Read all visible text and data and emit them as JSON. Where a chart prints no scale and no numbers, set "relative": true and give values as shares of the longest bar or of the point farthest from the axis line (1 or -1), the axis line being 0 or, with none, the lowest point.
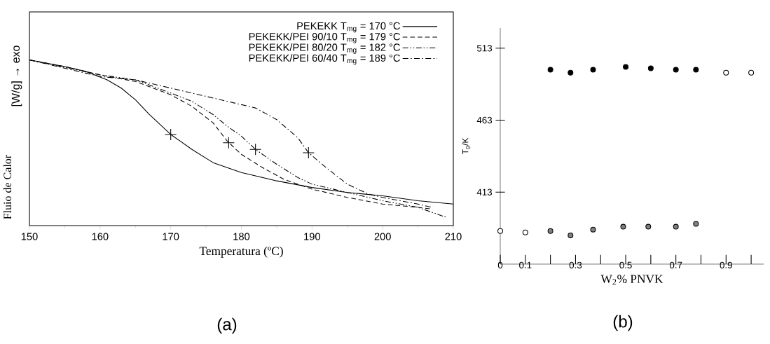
{
  "chart_data": [
    {
      "type": "line",
      "relative": true,
      "xlabel": "Temperatura (ºC)",
      "ylabel": "Fluio de Calor",
      "annotations": [
        "[W/g] → exo",
        "(a)"
      ],
      "xlim": [
        150,
        210
      ],
      "xticks": [
        150,
        160,
        170,
        180,
        190,
        200,
        210
      ],
      "tick_labels": "x",
      "legend": "top right",
      "series": [
        {
          "name": "PEKEKK T$_{mg}$ = 170 °C",
          "color": "#000000",
          "line_style": "solid",
          "x": [
            150,
            155,
            158,
            161,
            163,
            165,
            167,
            170,
            173,
            176,
            178,
            180,
            185,
            190,
            195,
            200,
            205,
            210
          ],
          "values": [
            1.0,
            0.96,
            0.93,
            0.88,
            0.83,
            0.76,
            0.67,
            0.55,
            0.46,
            0.38,
            0.35,
            0.32,
            0.27,
            0.23,
            0.2,
            0.18,
            0.15,
            0.13
          ]
        },
        {
          "name": "PEKEKK/PEI 90/10 T$_{mg}$ = 179 °C",
          "color": "#000000",
          "line_style": "dashed",
          "x": [
            150,
            155,
            160,
            165,
            170,
            173,
            176,
            178,
            180,
            183,
            186,
            190,
            195,
            200,
            205,
            207
          ],
          "values": [
            1.0,
            0.96,
            0.91,
            0.87,
            0.79,
            0.72,
            0.62,
            0.51,
            0.43,
            0.35,
            0.28,
            0.22,
            0.17,
            0.13,
            0.11,
            0.1
          ]
        },
        {
          "name": "PEKEKK/PEI 80/20 T$_{mg}$ = 182 °C",
          "color": "#000000",
          "line_style": "dashdotdot",
          "x": [
            150,
            160,
            165,
            170,
            173,
            176,
            178,
            180,
            182,
            185,
            188,
            190,
            195,
            200,
            205,
            209
          ],
          "values": [
            1.0,
            0.91,
            0.88,
            0.8,
            0.75,
            0.67,
            0.6,
            0.54,
            0.46,
            0.37,
            0.29,
            0.25,
            0.2,
            0.15,
            0.11,
            0.05
          ]
        },
        {
          "name": "PEKEKK/PEI 60/40 T$_{mg}$ = 189 °C",
          "color": "#000000",
          "line_style": "dashdot",
          "x": [
            150,
            160,
            165,
            170,
            175,
            180,
            182,
            185,
            188,
            189.5,
            192,
            195,
            198,
            200,
            205,
            207
          ],
          "values": [
            1.0,
            0.9,
            0.88,
            0.83,
            0.78,
            0.73,
            0.71,
            0.64,
            0.53,
            0.44,
            0.35,
            0.25,
            0.19,
            0.17,
            0.13,
            0.11
          ]
        },
        {
          "type": "scatter",
          "marker": "cross",
          "color": "#000000",
          "x": [
            170,
            178.2,
            182,
            189.5
          ],
          "values": [
            0.55,
            0.5,
            0.46,
            0.44
          ]
        }
      ]
    },
    {
      "type": "scatter",
      "xlabel": "W$_{2}$% PNVK",
      "ylabel": "T$_{g}$/K",
      "annotations": [
        "(b)"
      ],
      "marker": "circle",
      "xlim": [
        0,
        1.05
      ],
      "ylim": [
        363,
        527
      ],
      "xticks": [
        {
          "value": 0,
          "label": "0"
        },
        {
          "value": 0.1,
          "label": "0.1"
        },
        {
          "value": 0.2,
          "label": null
        },
        {
          "value": 0.3,
          "label": "0.3"
        },
        {
          "value": 0.4,
          "label": null
        },
        {
          "value": 0.5,
          "label": "0.5"
        },
        {
          "value": 0.6,
          "label": null
        },
        {
          "value": 0.7,
          "label": "0.7"
        },
        {
          "value": 0.8,
          "label": null
        },
        {
          "value": 0.9,
          "label": "0.9"
        },
        {
          "value": 1.0,
          "label": null
        }
      ],
      "yticks": [
        413,
        463,
        513
      ],
      "series": [
        {
          "color": "#000000",
          "x": [
            0.2,
            0.28,
            0.37,
            0.5,
            0.6,
            0.7,
            0.78
          ],
          "values": [
            498,
            496,
            498,
            500,
            499,
            498,
            498
          ]
        },
        {
          "color": "#ffffff",
          "x": [
            0.9,
            1.0
          ],
          "values": [
            496,
            496
          ]
        },
        {
          "color": "#808080",
          "x": [
            0.2,
            0.28,
            0.37,
            0.49,
            0.59,
            0.7,
            0.78
          ],
          "values": [
            386,
            383,
            387,
            389,
            389,
            389,
            391
          ]
        },
        {
          "color": "#ffffff",
          "x": [
            0,
            0.1
          ],
          "values": [
            386,
            385
          ]
        }
      ]
    }
  ]
}
